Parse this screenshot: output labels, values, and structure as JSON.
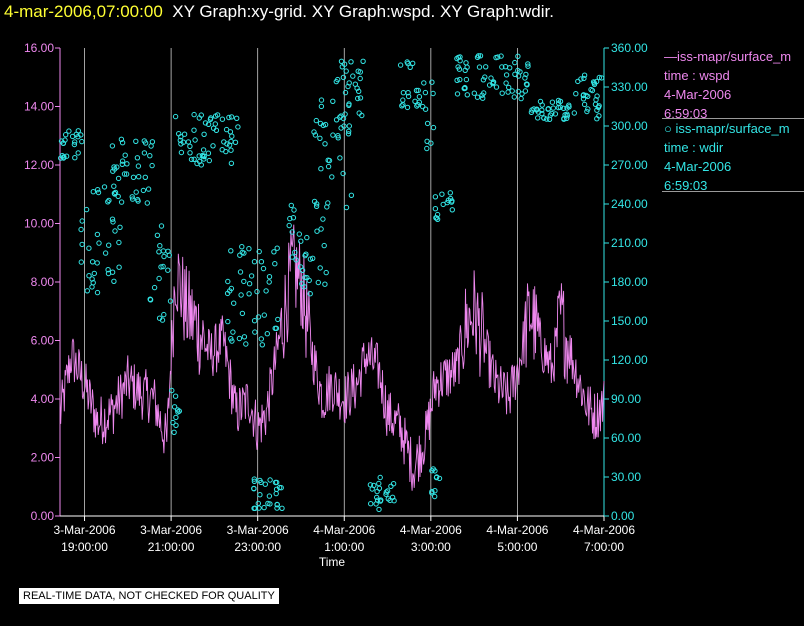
{
  "header": {
    "timestamp": "4-mar-2006,07:00:00",
    "graphs": "XY Graph:xy-grid.  XY Graph:wspd.  XY Graph:wdir."
  },
  "legend": [
    {
      "line1": "—iss-mapr/surface_m",
      "line2": "time : wspd",
      "line3": "4-Mar-2006",
      "line4": "6:59:03"
    },
    {
      "line1": "○ iss-mapr/surface_m",
      "line2": "time : wdir",
      "line3": "4-Mar-2006",
      "line4": "6:59:03"
    }
  ],
  "footer_note": "REAL-TIME DATA, NOT CHECKED FOR QUALITY",
  "colors": {
    "wspd": "#ee88ee",
    "wdir": "#33e6e6",
    "grid": "#cccccc",
    "timestamp": "#ffff33"
  },
  "chart_data": {
    "type": "line",
    "xlabel": "Time",
    "x_range": [
      "2006-03-03 18:26",
      "2006-03-04 07:00"
    ],
    "x_ticks": [
      {
        "date": "3-Mar-2006",
        "time": "19:00:00"
      },
      {
        "date": "3-Mar-2006",
        "time": "21:00:00"
      },
      {
        "date": "3-Mar-2006",
        "time": "23:00:00"
      },
      {
        "date": "4-Mar-2006",
        "time": "1:00:00"
      },
      {
        "date": "4-Mar-2006",
        "time": "3:00:00"
      },
      {
        "date": "4-Mar-2006",
        "time": "5:00:00"
      },
      {
        "date": "4-Mar-2006",
        "time": "7:00:00"
      }
    ],
    "x_tick_hours": [
      19,
      21,
      23,
      25,
      27,
      29,
      31
    ],
    "y_left": {
      "min": 0,
      "max": 16,
      "ticks": [
        "0.00",
        "2.00",
        "4.00",
        "6.00",
        "8.00",
        "10.00",
        "12.00",
        "14.00",
        "16.00"
      ]
    },
    "y_right": {
      "min": 0,
      "max": 360,
      "ticks": [
        "0.00",
        "30.00",
        "60.00",
        "90.00",
        "120.00",
        "150.00",
        "180.00",
        "210.00",
        "240.00",
        "270.00",
        "300.00",
        "330.00",
        "360.00"
      ]
    },
    "grid": "vertical at ticks",
    "series": [
      {
        "id": "wspd",
        "style": "line",
        "axis": "left",
        "anchor_hours": [
          18.45,
          18.7,
          19.0,
          19.3,
          19.6,
          19.8,
          20.0,
          20.3,
          20.6,
          20.9,
          21.1,
          21.35,
          21.6,
          21.9,
          22.2,
          22.5,
          22.8,
          23.0,
          23.2,
          23.5,
          23.8,
          24.0,
          24.2,
          24.5,
          24.7,
          25.0,
          25.3,
          25.5,
          25.8,
          26.0,
          26.3,
          26.6,
          26.9,
          27.1,
          27.4,
          27.6,
          27.8,
          28.0,
          28.2,
          28.5,
          28.8,
          29.0,
          29.3,
          29.5,
          29.8,
          30.0,
          30.3,
          30.6,
          30.8,
          31.0
        ],
        "anchor_values": [
          3.5,
          5.5,
          4.5,
          3.2,
          3.5,
          4.0,
          4.6,
          4.2,
          4.0,
          2.5,
          8.5,
          7.0,
          6.5,
          5.5,
          6.0,
          3.5,
          4.0,
          3.0,
          3.5,
          6.0,
          8.5,
          8.0,
          6.0,
          4.0,
          4.5,
          4.0,
          4.5,
          5.5,
          5.0,
          3.5,
          3.0,
          1.6,
          2.8,
          4.5,
          4.8,
          5.0,
          6.5,
          7.0,
          6.0,
          4.5,
          4.0,
          5.0,
          7.0,
          6.0,
          5.0,
          6.8,
          5.2,
          3.8,
          3.4,
          3.9
        ]
      },
      {
        "id": "wdir",
        "style": "scatter",
        "axis": "right",
        "clusters": [
          {
            "t": [
              18.45,
              19.0
            ],
            "v": [
              275,
              300
            ]
          },
          {
            "t": [
              18.9,
              19.9
            ],
            "v": [
              170,
              255
            ]
          },
          {
            "t": [
              19.6,
              20.6
            ],
            "v": [
              240,
              290
            ]
          },
          {
            "t": [
              20.5,
              21.0
            ],
            "v": [
              150,
              230
            ]
          },
          {
            "t": [
              21.0,
              21.2
            ],
            "v": [
              55,
              100
            ]
          },
          {
            "t": [
              21.1,
              22.6
            ],
            "v": [
              270,
              310
            ]
          },
          {
            "t": [
              22.3,
              23.5
            ],
            "v": [
              130,
              210
            ]
          },
          {
            "t": [
              22.9,
              23.6
            ],
            "v": [
              5,
              30
            ]
          },
          {
            "t": [
              23.7,
              24.6
            ],
            "v": [
              170,
              240
            ]
          },
          {
            "t": [
              24.3,
              25.2
            ],
            "v": [
              230,
              320
            ]
          },
          {
            "t": [
              24.8,
              25.5
            ],
            "v": [
              305,
              350
            ]
          },
          {
            "t": [
              25.6,
              26.2
            ],
            "v": [
              5,
              30
            ]
          },
          {
            "t": [
              26.3,
              26.8
            ],
            "v": [
              310,
              350
            ]
          },
          {
            "t": [
              26.8,
              27.1
            ],
            "v": [
              280,
              340
            ]
          },
          {
            "t": [
              27.1,
              27.5
            ],
            "v": [
              225,
              250
            ]
          },
          {
            "t": [
              27.0,
              27.2
            ],
            "v": [
              10,
              40
            ]
          },
          {
            "t": [
              27.6,
              29.3
            ],
            "v": [
              320,
              355
            ]
          },
          {
            "t": [
              29.3,
              30.2
            ],
            "v": [
              305,
              320
            ]
          },
          {
            "t": [
              30.1,
              31.0
            ],
            "v": [
              305,
              340
            ]
          }
        ]
      }
    ]
  }
}
